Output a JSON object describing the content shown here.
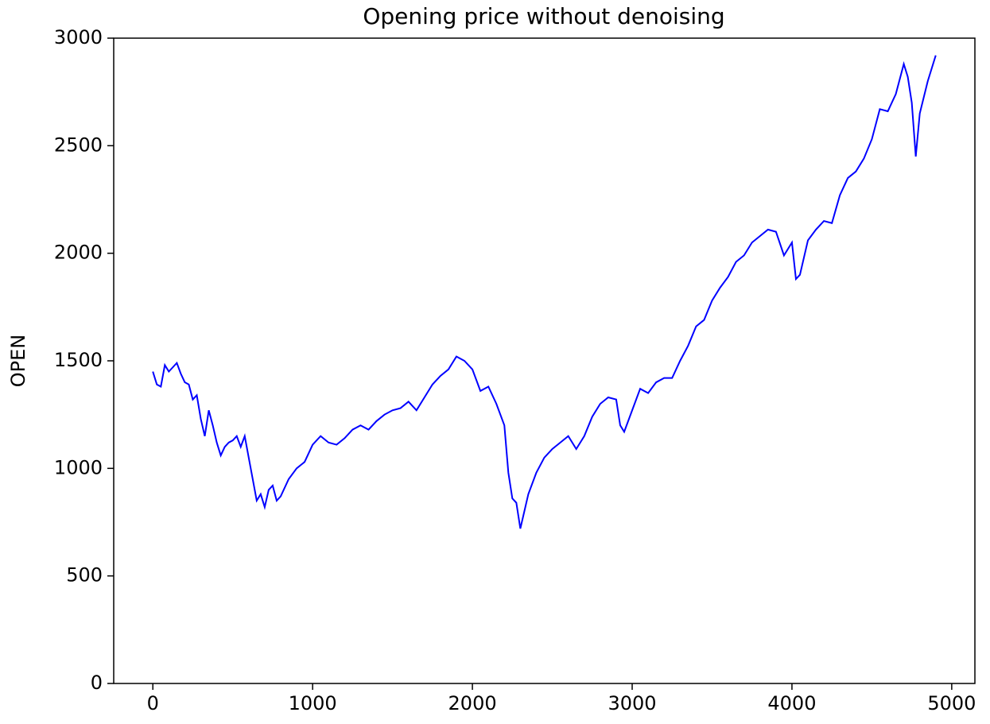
{
  "chart_data": {
    "type": "line",
    "title": "Opening price without denoising",
    "y_label": "OPEN",
    "x": [
      0,
      25,
      50,
      75,
      100,
      125,
      150,
      175,
      200,
      225,
      250,
      275,
      300,
      325,
      350,
      375,
      400,
      425,
      450,
      475,
      500,
      525,
      550,
      575,
      600,
      625,
      650,
      675,
      700,
      725,
      750,
      775,
      800,
      850,
      900,
      950,
      1000,
      1050,
      1100,
      1150,
      1200,
      1250,
      1300,
      1350,
      1400,
      1450,
      1500,
      1550,
      1600,
      1650,
      1700,
      1750,
      1800,
      1850,
      1900,
      1950,
      2000,
      2050,
      2100,
      2150,
      2200,
      2225,
      2250,
      2275,
      2300,
      2325,
      2350,
      2400,
      2450,
      2500,
      2550,
      2600,
      2650,
      2700,
      2750,
      2800,
      2850,
      2900,
      2925,
      2950,
      3000,
      3050,
      3100,
      3150,
      3200,
      3250,
      3300,
      3350,
      3400,
      3450,
      3500,
      3550,
      3600,
      3650,
      3700,
      3750,
      3800,
      3850,
      3900,
      3950,
      4000,
      4025,
      4050,
      4100,
      4150,
      4200,
      4250,
      4300,
      4350,
      4400,
      4450,
      4500,
      4550,
      4600,
      4650,
      4700,
      4725,
      4750,
      4775,
      4800,
      4850,
      4900
    ],
    "values": [
      1450,
      1390,
      1380,
      1480,
      1450,
      1470,
      1490,
      1440,
      1400,
      1390,
      1320,
      1340,
      1230,
      1150,
      1270,
      1200,
      1120,
      1060,
      1100,
      1120,
      1130,
      1150,
      1100,
      1150,
      1050,
      950,
      850,
      880,
      820,
      900,
      920,
      850,
      870,
      950,
      1000,
      1030,
      1110,
      1150,
      1120,
      1110,
      1140,
      1180,
      1200,
      1180,
      1220,
      1250,
      1270,
      1280,
      1310,
      1270,
      1330,
      1390,
      1430,
      1460,
      1520,
      1500,
      1460,
      1360,
      1380,
      1300,
      1200,
      980,
      860,
      840,
      720,
      800,
      880,
      980,
      1050,
      1090,
      1120,
      1150,
      1090,
      1150,
      1240,
      1300,
      1330,
      1320,
      1200,
      1170,
      1270,
      1370,
      1350,
      1400,
      1420,
      1420,
      1500,
      1570,
      1660,
      1690,
      1780,
      1840,
      1890,
      1960,
      1990,
      2050,
      2080,
      2110,
      2100,
      1990,
      2050,
      1880,
      1900,
      2060,
      2110,
      2150,
      2140,
      2270,
      2350,
      2380,
      2440,
      2530,
      2670,
      2660,
      2740,
      2880,
      2820,
      2700,
      2450,
      2650,
      2800,
      2920
    ],
    "color": "#0000ff",
    "xlim": [
      -245,
      5145
    ],
    "xticks": [
      0,
      1000,
      2000,
      3000,
      4000,
      5000
    ],
    "ylim": [
      0,
      3000
    ],
    "yticks": [
      0,
      500,
      1000,
      1500,
      2000,
      2500,
      3000
    ]
  }
}
